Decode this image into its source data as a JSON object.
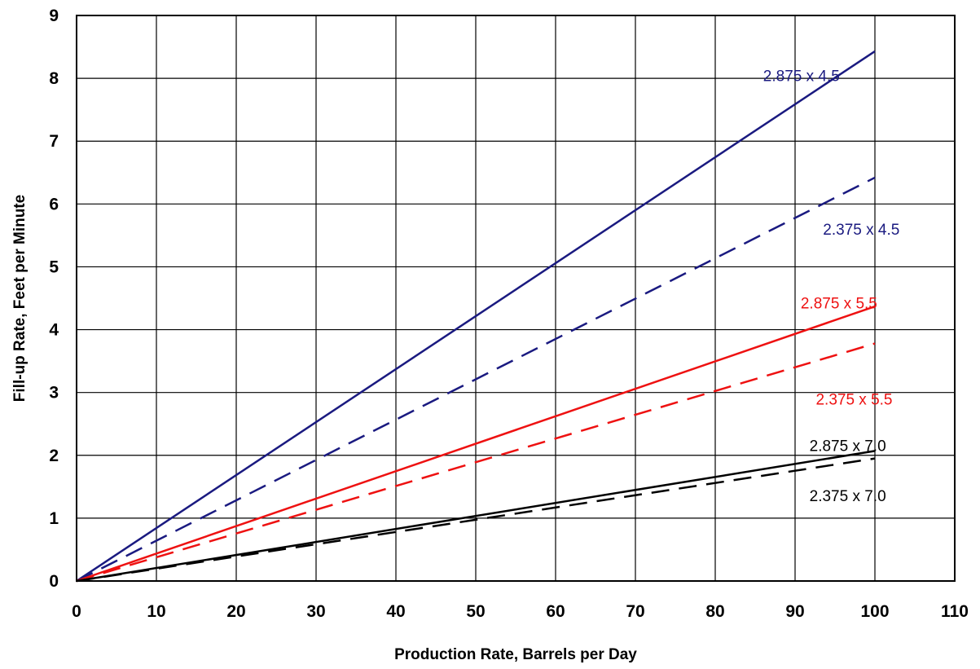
{
  "chart_data": {
    "type": "line",
    "title": "",
    "xlabel": "Production Rate, Barrels per Day",
    "ylabel": "Fill-up Rate, Feet per Minute",
    "xlim": [
      0,
      110
    ],
    "ylim": [
      0,
      9
    ],
    "xticks": [
      0,
      10,
      20,
      30,
      40,
      50,
      60,
      70,
      80,
      90,
      100,
      110
    ],
    "yticks": [
      0,
      1,
      2,
      3,
      4,
      5,
      6,
      7,
      8,
      9
    ],
    "grid": true,
    "legend": "none (series labelled inline near line ends)",
    "series": [
      {
        "name": "2.875 x 4.5",
        "color": "#1a1a80",
        "dash": "solid",
        "x": [
          0,
          100
        ],
        "y": [
          0,
          8.43
        ],
        "label_at": {
          "x": 86,
          "y": 8.05
        }
      },
      {
        "name": "2.375 x 4.5",
        "color": "#1a1a80",
        "dash": "dashed",
        "x": [
          0,
          100
        ],
        "y": [
          0,
          6.42
        ],
        "label_at": {
          "x": 93.5,
          "y": 5.6
        }
      },
      {
        "name": "2.875 x 5.5",
        "color": "#ee1111",
        "dash": "solid",
        "x": [
          0,
          100
        ],
        "y": [
          0,
          4.37
        ],
        "label_at": {
          "x": 90.7,
          "y": 4.43
        }
      },
      {
        "name": "2.375 x 5.5",
        "color": "#ee1111",
        "dash": "dashed",
        "x": [
          0,
          100
        ],
        "y": [
          0,
          3.78
        ],
        "label_at": {
          "x": 92.6,
          "y": 2.9
        }
      },
      {
        "name": "2.875 x 7.0",
        "color": "#000000",
        "dash": "solid",
        "x": [
          0,
          100
        ],
        "y": [
          0,
          2.07
        ],
        "label_at": {
          "x": 91.8,
          "y": 2.16
        }
      },
      {
        "name": "2.375 x 7.0",
        "color": "#000000",
        "dash": "dashed",
        "x": [
          0,
          100
        ],
        "y": [
          0,
          1.95
        ],
        "label_at": {
          "x": 91.8,
          "y": 1.36
        }
      }
    ]
  }
}
